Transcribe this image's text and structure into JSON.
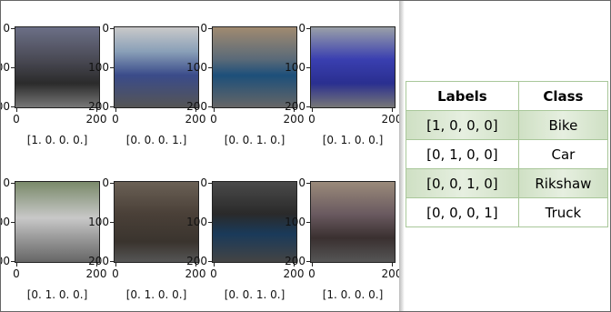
{
  "figure": {
    "xticks": [
      "0",
      "200"
    ],
    "yticks": [
      "0",
      "100",
      "200"
    ],
    "panels": [
      {
        "label": "[1. 0. 0. 0.]"
      },
      {
        "label": "[0. 0. 0. 1.]"
      },
      {
        "label": "[0. 0. 1. 0.]"
      },
      {
        "label": "[0. 1. 0. 0.]"
      },
      {
        "label": "[0. 1. 0. 0.]"
      },
      {
        "label": "[0. 1. 0. 0.]"
      },
      {
        "label": "[0. 0. 1. 0.]"
      },
      {
        "label": "[1. 0. 0. 0.]"
      }
    ]
  },
  "table": {
    "header": [
      "Labels",
      "Class"
    ],
    "rows": [
      [
        "[1, 0, 0, 0]",
        "Bike"
      ],
      [
        "[0, 1, 0, 0]",
        "Car"
      ],
      [
        "[0, 0, 1, 0]",
        "Rikshaw"
      ],
      [
        "[0, 0, 0, 1]",
        "Truck"
      ]
    ]
  }
}
